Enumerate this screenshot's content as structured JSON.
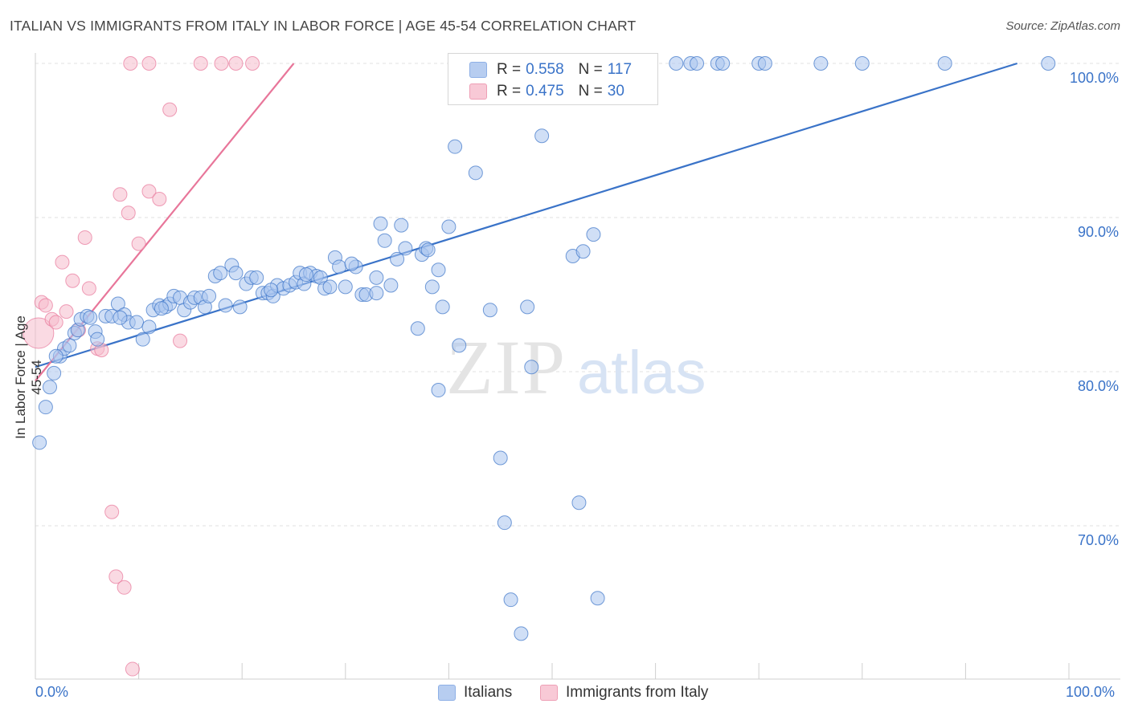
{
  "title": "ITALIAN VS IMMIGRANTS FROM ITALY IN LABOR FORCE | AGE 45-54 CORRELATION CHART",
  "source": "Source: ZipAtlas.com",
  "watermark": {
    "zip": "ZIP",
    "atlas": "atlas"
  },
  "colors": {
    "blue": "#3a73c8",
    "blue_fill": "#a9c4ee",
    "pink": "#e8769a",
    "pink_fill": "#f6bccc",
    "grid": "#e2e2e2",
    "axis_text": "#3a73c8"
  },
  "legend": {
    "rows": [
      {
        "r_label": "R =",
        "r_value": "0.558",
        "n_label": "N =",
        "n_value": "117",
        "color": "blue"
      },
      {
        "r_label": "R =",
        "r_value": "0.475",
        "n_label": "N =",
        "n_value": "30",
        "color": "pink"
      }
    ]
  },
  "bottom_legend": {
    "items": [
      "Italians",
      "Immigrants from Italy"
    ]
  },
  "x_axis": {
    "min_label": "0.0%",
    "max_label": "100.0%"
  },
  "y_axis": {
    "label": "In Labor Force | Age 45-54",
    "tick_labels": [
      "100.0%",
      "90.0%",
      "80.0%",
      "70.0%"
    ]
  },
  "chart_data": {
    "type": "scatter",
    "xlabel": "",
    "ylabel": "In Labor Force | Age 45-54",
    "xlim": [
      0,
      100
    ],
    "ylim": [
      60.5,
      101.5
    ],
    "y_ticks": [
      100,
      90,
      80,
      70
    ],
    "grid": true,
    "legend_position": "top-center",
    "series": [
      {
        "name": "Italians",
        "color": "blue",
        "trend": {
          "x0": 0,
          "y0": 80.3,
          "x1": 95.0,
          "y1": 100.0
        },
        "points": [
          [
            0.4,
            75.4
          ],
          [
            1.0,
            77.7
          ],
          [
            1.4,
            79.0
          ],
          [
            1.8,
            79.9
          ],
          [
            2.4,
            81.0
          ],
          [
            2.8,
            81.5
          ],
          [
            3.3,
            81.7
          ],
          [
            3.8,
            82.5
          ],
          [
            4.1,
            82.7
          ],
          [
            4.4,
            83.4
          ],
          [
            5.0,
            83.6
          ],
          [
            5.3,
            83.5
          ],
          [
            5.8,
            82.6
          ],
          [
            6.0,
            82.1
          ],
          [
            6.8,
            83.6
          ],
          [
            7.4,
            83.6
          ],
          [
            8.0,
            84.4
          ],
          [
            8.6,
            83.7
          ],
          [
            9.0,
            83.2
          ],
          [
            9.8,
            83.2
          ],
          [
            10.4,
            82.1
          ],
          [
            11.0,
            82.9
          ],
          [
            11.4,
            84.0
          ],
          [
            12.0,
            84.3
          ],
          [
            12.6,
            84.2
          ],
          [
            13.0,
            84.4
          ],
          [
            13.4,
            84.9
          ],
          [
            14.0,
            84.8
          ],
          [
            14.4,
            84.0
          ],
          [
            15.0,
            84.5
          ],
          [
            15.4,
            84.8
          ],
          [
            16.0,
            84.8
          ],
          [
            16.4,
            84.2
          ],
          [
            16.8,
            84.9
          ],
          [
            17.4,
            86.2
          ],
          [
            17.9,
            86.4
          ],
          [
            18.4,
            84.3
          ],
          [
            19.0,
            86.9
          ],
          [
            19.4,
            86.4
          ],
          [
            19.8,
            84.2
          ],
          [
            20.4,
            85.7
          ],
          [
            20.9,
            86.1
          ],
          [
            21.4,
            86.1
          ],
          [
            22.0,
            85.1
          ],
          [
            22.5,
            85.1
          ],
          [
            23.0,
            84.9
          ],
          [
            23.4,
            85.6
          ],
          [
            24.0,
            85.4
          ],
          [
            24.6,
            85.6
          ],
          [
            25.2,
            85.8
          ],
          [
            25.6,
            86.4
          ],
          [
            26.0,
            85.7
          ],
          [
            26.6,
            86.4
          ],
          [
            27.2,
            86.2
          ],
          [
            27.6,
            86.1
          ],
          [
            28.0,
            85.4
          ],
          [
            28.5,
            85.5
          ],
          [
            29.0,
            87.4
          ],
          [
            29.4,
            86.8
          ],
          [
            30.0,
            85.5
          ],
          [
            31.0,
            86.8
          ],
          [
            31.6,
            85.0
          ],
          [
            32.0,
            85.0
          ],
          [
            33.0,
            86.1
          ],
          [
            33.4,
            89.6
          ],
          [
            33.8,
            88.5
          ],
          [
            34.4,
            85.6
          ],
          [
            35.0,
            87.3
          ],
          [
            35.4,
            89.5
          ],
          [
            35.8,
            88.0
          ],
          [
            37.0,
            82.8
          ],
          [
            37.4,
            87.6
          ],
          [
            37.8,
            88.0
          ],
          [
            38.4,
            85.5
          ],
          [
            39.0,
            86.6
          ],
          [
            39.4,
            84.2
          ],
          [
            40.0,
            89.4
          ],
          [
            39.0,
            78.8
          ],
          [
            40.6,
            94.6
          ],
          [
            41.0,
            81.7
          ],
          [
            42.6,
            92.9
          ],
          [
            44.0,
            84.0
          ],
          [
            45.0,
            74.4
          ],
          [
            45.4,
            70.2
          ],
          [
            46.0,
            65.2
          ],
          [
            47.0,
            63.0
          ],
          [
            47.6,
            84.2
          ],
          [
            48.0,
            80.3
          ],
          [
            49.0,
            95.3
          ],
          [
            50.6,
            100.0
          ],
          [
            52.0,
            87.5
          ],
          [
            52.6,
            71.5
          ],
          [
            53.0,
            87.8
          ],
          [
            54.0,
            88.9
          ],
          [
            54.4,
            65.3
          ],
          [
            55.0,
            100.0
          ],
          [
            56.0,
            100.0
          ],
          [
            62.0,
            100.0
          ],
          [
            63.4,
            100.0
          ],
          [
            64.0,
            100.0
          ],
          [
            66.0,
            100.0
          ],
          [
            66.5,
            100.0
          ],
          [
            70.0,
            100.0
          ],
          [
            70.6,
            100.0
          ],
          [
            76.0,
            100.0
          ],
          [
            80.0,
            100.0
          ],
          [
            88.0,
            100.0
          ],
          [
            98.0,
            100.0
          ],
          [
            2.0,
            81.0
          ],
          [
            12.2,
            84.1
          ],
          [
            22.8,
            85.3
          ],
          [
            30.6,
            87.0
          ],
          [
            8.2,
            83.5
          ],
          [
            26.2,
            86.3
          ],
          [
            33.0,
            85.1
          ],
          [
            38.0,
            87.9
          ]
        ]
      },
      {
        "name": "Immigrants from Italy",
        "color": "pink",
        "trend": {
          "x0": 0,
          "y0": 79.4,
          "x1": 25.0,
          "y1": 100.0
        },
        "points": [
          [
            0.3,
            82.5
          ],
          [
            0.6,
            84.5
          ],
          [
            1.0,
            84.3
          ],
          [
            1.6,
            83.4
          ],
          [
            2.0,
            83.2
          ],
          [
            2.6,
            87.1
          ],
          [
            3.0,
            83.9
          ],
          [
            3.6,
            85.9
          ],
          [
            4.2,
            82.7
          ],
          [
            4.8,
            88.7
          ],
          [
            5.2,
            85.4
          ],
          [
            6.0,
            81.5
          ],
          [
            6.4,
            81.4
          ],
          [
            7.4,
            70.9
          ],
          [
            7.8,
            66.7
          ],
          [
            8.2,
            91.5
          ],
          [
            8.6,
            66.0
          ],
          [
            9.0,
            90.3
          ],
          [
            9.4,
            60.7
          ],
          [
            10.0,
            88.3
          ],
          [
            11.0,
            91.7
          ],
          [
            12.0,
            91.2
          ],
          [
            13.0,
            97.0
          ],
          [
            14.0,
            82.0
          ],
          [
            9.2,
            100.0
          ],
          [
            11.0,
            100.0
          ],
          [
            16.0,
            100.0
          ],
          [
            18.0,
            100.0
          ],
          [
            19.4,
            100.0
          ],
          [
            21.0,
            100.0
          ]
        ]
      }
    ]
  }
}
